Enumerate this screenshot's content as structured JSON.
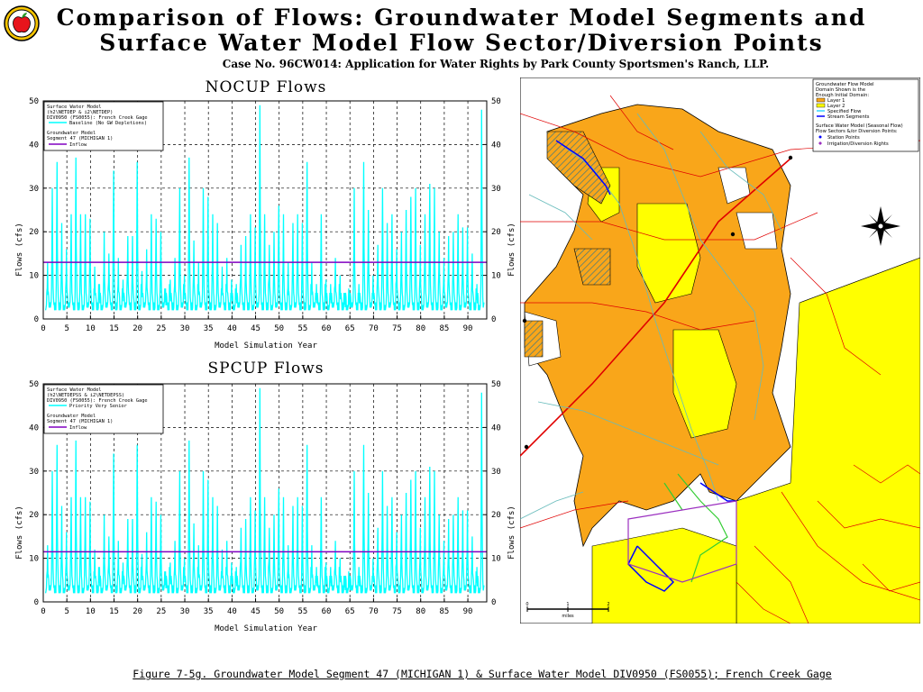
{
  "header": {
    "title_line1": "Comparison of Flows: Groundwater Model Segments and",
    "title_line2": "Surface Water Model Flow Sector/Diversion Points",
    "subtitle": "Case No. 96CW014: Application for Water Rights by Park County Sportsmen's Ranch, LLP."
  },
  "caption": "Figure 7-5g. Groundwater Model Segment 47 (MICHIGAN 1) & Surface Water Model DIV0950 (FS0055); French Creek Gage",
  "logo": {
    "icon": "apple-logo-icon",
    "colors": {
      "apple": "#e8141c",
      "ring": "#f5c400",
      "leaf": "#2a9a2a"
    }
  },
  "chart_data": [
    {
      "type": "line",
      "title": "NOCUP Flows",
      "xlabel": "Model Simulation Year",
      "ylabel": "Flows (cfs)",
      "xlim": [
        0,
        94
      ],
      "ylim": [
        0,
        50
      ],
      "xticks": [
        0,
        5,
        10,
        15,
        20,
        25,
        30,
        35,
        40,
        45,
        50,
        55,
        60,
        65,
        70,
        75,
        80,
        85,
        90
      ],
      "yticks": [
        0,
        10,
        20,
        30,
        40,
        50
      ],
      "grid": true,
      "legend": {
        "placement": "top-left",
        "lines": [
          "Surface Water Model",
          "(h2\\NETDEP & i2\\NETDEP)",
          "DIV0950 (FS0055): French Creek Gage",
          "Baseline (No GW Depletions)",
          "Groundwater Model",
          "Segment 47 (MICHIGAN 1)",
          "Inflow"
        ]
      },
      "series": [
        {
          "name": "Baseline (No GW Depletions)",
          "color": "#00ffff",
          "annual_peaks": [
            13,
            30,
            36,
            22,
            16,
            24,
            37,
            24,
            24,
            23,
            12,
            8,
            20,
            15,
            34,
            14,
            9,
            19,
            19,
            36,
            11,
            16,
            24,
            23,
            20,
            7,
            9,
            14,
            30,
            10,
            37,
            18,
            13,
            30,
            28,
            24,
            22,
            12,
            14,
            9,
            8,
            17,
            19,
            24,
            21,
            49,
            24,
            17,
            20,
            26,
            24,
            13,
            22,
            24,
            22,
            36,
            13,
            8,
            24,
            9,
            8,
            14,
            10,
            6,
            6,
            30,
            8,
            36,
            25,
            10,
            17,
            30,
            22,
            24,
            16,
            20,
            25,
            28,
            30,
            17,
            24,
            31,
            30,
            20,
            14,
            19,
            20,
            24,
            21,
            21,
            15,
            8,
            48
          ],
          "baseflow": 2
        },
        {
          "name": "Inflow",
          "color": "#8000c0",
          "values_const": 13
        }
      ]
    },
    {
      "type": "line",
      "title": "SPCUP Flows",
      "xlabel": "Model Simulation Year",
      "ylabel": "Flows (cfs)",
      "xlim": [
        0,
        94
      ],
      "ylim": [
        0,
        50
      ],
      "xticks": [
        0,
        5,
        10,
        15,
        20,
        25,
        30,
        35,
        40,
        45,
        50,
        55,
        60,
        65,
        70,
        75,
        80,
        85,
        90
      ],
      "yticks": [
        0,
        10,
        20,
        30,
        40,
        50
      ],
      "grid": true,
      "legend": {
        "placement": "top-left",
        "lines": [
          "Surface Water Model",
          "(h2\\NETDEPSS & i2\\NETDEPSS)",
          "DIV0950 (FS0055): French Creek Gage",
          "Priority Very Senior",
          "Groundwater Model",
          "Segment 47 (MICHIGAN 1)",
          "Inflow"
        ]
      },
      "series": [
        {
          "name": "Priority Very Senior",
          "color": "#00ffff",
          "annual_peaks": [
            13,
            30,
            36,
            22,
            16,
            24,
            37,
            24,
            24,
            23,
            12,
            8,
            20,
            15,
            34,
            14,
            9,
            19,
            19,
            36,
            11,
            16,
            24,
            23,
            20,
            7,
            9,
            14,
            30,
            10,
            37,
            18,
            13,
            30,
            28,
            24,
            22,
            12,
            14,
            9,
            8,
            17,
            19,
            24,
            21,
            49,
            24,
            17,
            20,
            26,
            24,
            13,
            22,
            24,
            22,
            36,
            13,
            8,
            24,
            9,
            8,
            14,
            10,
            6,
            6,
            30,
            8,
            36,
            25,
            10,
            17,
            30,
            22,
            24,
            16,
            20,
            25,
            28,
            30,
            17,
            24,
            31,
            30,
            20,
            14,
            19,
            20,
            24,
            21,
            21,
            15,
            8,
            48
          ],
          "baseflow": 2
        },
        {
          "name": "Inflow",
          "color": "#8000c0",
          "values_const": 11.5
        }
      ]
    }
  ],
  "map": {
    "colors": {
      "layer1": "#f9a61a",
      "layer2": "#ffff00",
      "background": "#ffffff",
      "streams": "#e00000",
      "stream_segments": "#0000ff",
      "specified_flow": "#00ccff",
      "riverlines": "#66bbbb"
    },
    "legend": {
      "lines": [
        "Groundwater Flow Model",
        "Domain Shown is the",
        "Enough Initial Domain:",
        "Layer 1",
        "Layer 2",
        "Specified Flow",
        "Stream Segments",
        "Surface Water Model (Seasonal Flow)",
        "Flow Sectors &/or Diversion Points:",
        "Station Points",
        "Irrigation/Diversion Rights"
      ]
    },
    "scale_label": "miles",
    "scale_ticks": [
      "0",
      "1",
      "2"
    ],
    "compass_icon": "compass-rose-icon"
  }
}
